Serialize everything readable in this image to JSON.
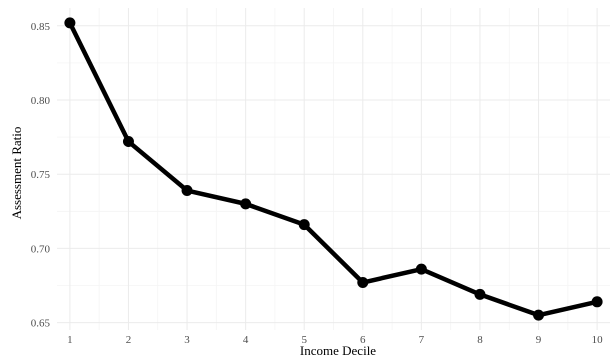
{
  "chart_data": {
    "type": "line",
    "x": [
      1,
      2,
      3,
      4,
      5,
      6,
      7,
      8,
      9,
      10
    ],
    "y": [
      0.852,
      0.772,
      0.739,
      0.73,
      0.716,
      0.677,
      0.686,
      0.669,
      0.655,
      0.664
    ],
    "xlabel": "Income Decile",
    "ylabel": "Assessment Ratio",
    "x_ticks": [
      "1",
      "2",
      "3",
      "4",
      "5",
      "6",
      "7",
      "8",
      "9",
      "10"
    ],
    "y_ticks": [
      "0.65",
      "0.70",
      "0.75",
      "0.80",
      "0.85"
    ],
    "xlim": [
      0.78,
      10.22
    ],
    "ylim": [
      0.645,
      0.862
    ],
    "grid": true,
    "line_color": "#000000",
    "background": "#ffffff"
  }
}
